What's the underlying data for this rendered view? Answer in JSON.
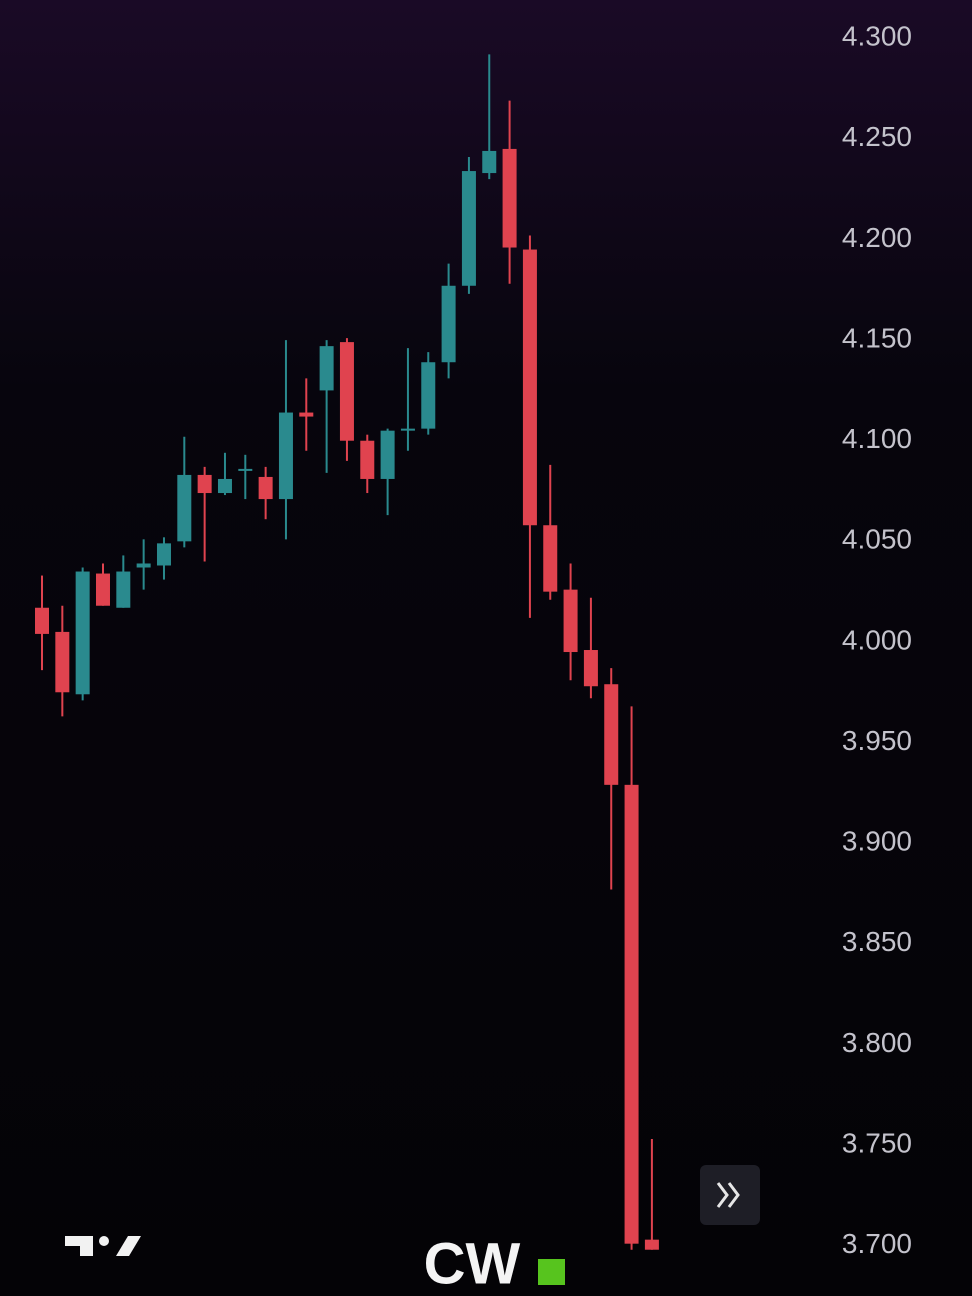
{
  "chart_data": {
    "type": "candlestick",
    "up_color": "#2a8a8e",
    "down_color": "#e0434f",
    "open": [
      4.017,
      4.005,
      3.974,
      4.034,
      4.017,
      4.037,
      4.038,
      4.05,
      4.083,
      4.074,
      4.085,
      4.082,
      4.071,
      4.114,
      4.125,
      4.149,
      4.1,
      4.081,
      4.105,
      4.106,
      4.139,
      4.177,
      4.233,
      4.245,
      4.195,
      4.058,
      4.026,
      3.996,
      3.979,
      3.929,
      3.703
    ],
    "high": [
      4.033,
      4.018,
      4.037,
      4.039,
      4.043,
      4.051,
      4.052,
      4.102,
      4.087,
      4.094,
      4.093,
      4.087,
      4.15,
      4.131,
      4.15,
      4.151,
      4.103,
      4.106,
      4.146,
      4.144,
      4.188,
      4.241,
      4.292,
      4.269,
      4.202,
      4.088,
      4.039,
      4.022,
      3.987,
      3.968,
      3.753
    ],
    "low": [
      3.986,
      3.963,
      3.971,
      4.018,
      4.017,
      4.026,
      4.031,
      4.047,
      4.04,
      4.073,
      4.071,
      4.061,
      4.051,
      4.095,
      4.084,
      4.09,
      4.074,
      4.063,
      4.095,
      4.103,
      4.131,
      4.173,
      4.23,
      4.178,
      4.012,
      4.021,
      3.981,
      3.972,
      3.877,
      3.698,
      3.698
    ],
    "close": [
      4.004,
      3.975,
      4.035,
      4.018,
      4.035,
      4.039,
      4.049,
      4.083,
      4.074,
      4.081,
      4.086,
      4.071,
      4.114,
      4.112,
      4.147,
      4.1,
      4.081,
      4.105,
      4.106,
      4.139,
      4.177,
      4.234,
      4.244,
      4.196,
      4.058,
      4.025,
      3.995,
      3.978,
      3.929,
      3.701,
      3.698
    ],
    "ylim": [
      3.675,
      4.319
    ],
    "yticks": [
      {
        "value": 4.3,
        "label": "4.300"
      },
      {
        "value": 4.25,
        "label": "4.250"
      },
      {
        "value": 4.2,
        "label": "4.200"
      },
      {
        "value": 4.15,
        "label": "4.150"
      },
      {
        "value": 4.1,
        "label": "4.100"
      },
      {
        "value": 4.05,
        "label": "4.050"
      },
      {
        "value": 4.0,
        "label": "4.000"
      },
      {
        "value": 3.95,
        "label": "3.950"
      },
      {
        "value": 3.9,
        "label": "3.900"
      },
      {
        "value": 3.85,
        "label": "3.850"
      },
      {
        "value": 3.8,
        "label": "3.800"
      },
      {
        "value": 3.75,
        "label": "3.750"
      },
      {
        "value": 3.7,
        "label": "3.700"
      }
    ],
    "watermark": "CW"
  }
}
